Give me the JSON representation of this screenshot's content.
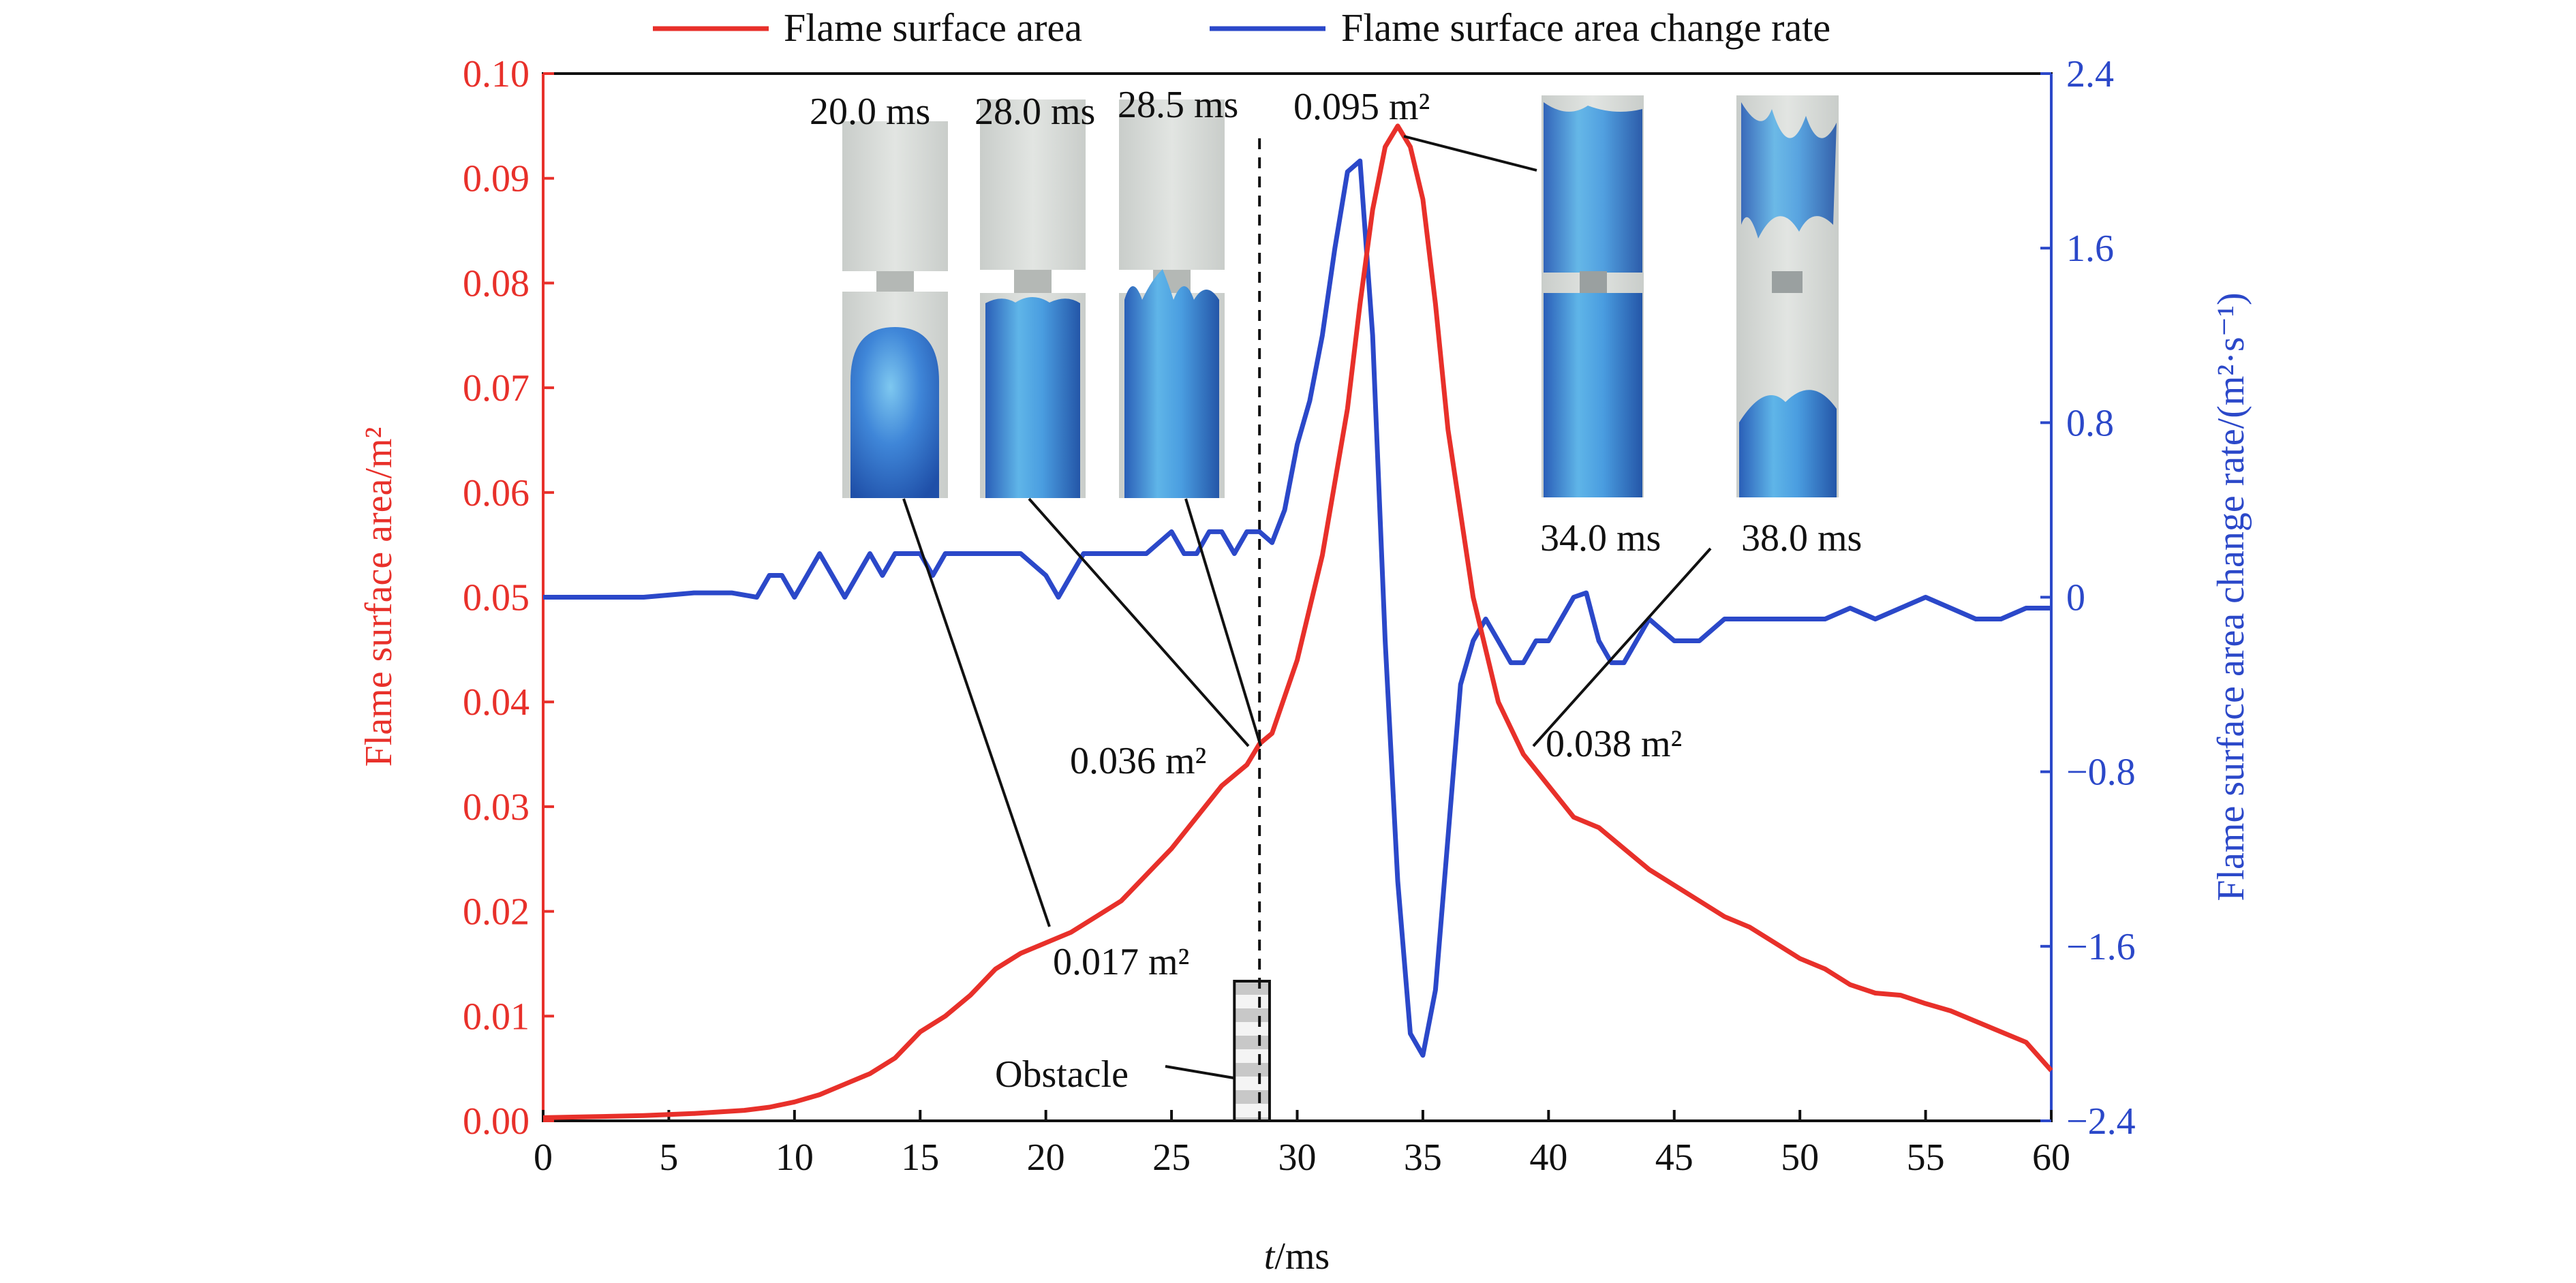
{
  "chart_data": {
    "type": "line",
    "xlabel_italic": "t",
    "xlabel_unit": "/ms",
    "ylabel_left": "Flame surface area/m²",
    "ylabel_right": "Flame surface area change rate/(m²·s⁻¹)",
    "xlim": [
      0,
      60
    ],
    "ylim_left": [
      0,
      0.1
    ],
    "ylim_right": [
      -2.4,
      2.4
    ],
    "x_ticks": [
      "0",
      "5",
      "10",
      "15",
      "20",
      "25",
      "30",
      "35",
      "40",
      "45",
      "50",
      "55",
      "60"
    ],
    "y_left_ticks": [
      "0.00",
      "0.01",
      "0.02",
      "0.03",
      "0.04",
      "0.05",
      "0.06",
      "0.07",
      "0.08",
      "0.09",
      "0.10"
    ],
    "y_right_ticks": [
      "2.4",
      "1.6",
      "0.8",
      "0",
      "−0.8",
      "−1.6",
      "−2.4"
    ],
    "colors": {
      "area": "#e8302a",
      "rate": "#2b48c9",
      "axis": "#111111"
    },
    "legend": {
      "placement": "top",
      "entries": [
        "Flame surface area",
        "Flame surface area change rate"
      ]
    },
    "series": [
      {
        "name": "Flame surface area",
        "axis": "left",
        "x": [
          0,
          2,
          4,
          6,
          8,
          9,
          10,
          11,
          12,
          13,
          14,
          15,
          16,
          17,
          18,
          19,
          20,
          21,
          22,
          23,
          24,
          25,
          26,
          27,
          28,
          28.5,
          29,
          30,
          31,
          32,
          32.5,
          33,
          33.5,
          34,
          34.5,
          35,
          35.5,
          36,
          37,
          38,
          39,
          40,
          41,
          42,
          43,
          44,
          45,
          46,
          47,
          48,
          49,
          50,
          51,
          52,
          53,
          54,
          55,
          56,
          57,
          58,
          59,
          60
        ],
        "y": [
          0.0003,
          0.0004,
          0.0005,
          0.0007,
          0.001,
          0.0013,
          0.0018,
          0.0025,
          0.0035,
          0.0045,
          0.006,
          0.0085,
          0.01,
          0.012,
          0.0145,
          0.016,
          0.017,
          0.018,
          0.0195,
          0.021,
          0.0235,
          0.026,
          0.029,
          0.032,
          0.034,
          0.036,
          0.037,
          0.044,
          0.054,
          0.068,
          0.078,
          0.087,
          0.093,
          0.095,
          0.093,
          0.088,
          0.078,
          0.066,
          0.05,
          0.04,
          0.035,
          0.032,
          0.029,
          0.028,
          0.026,
          0.024,
          0.0225,
          0.021,
          0.0195,
          0.0185,
          0.017,
          0.0155,
          0.0145,
          0.013,
          0.0122,
          0.012,
          0.0112,
          0.0105,
          0.0095,
          0.0085,
          0.0075,
          0.0048
        ]
      },
      {
        "name": "Flame surface area change rate",
        "axis": "right",
        "x": [
          0,
          2,
          4,
          6,
          7.5,
          8.5,
          9,
          9.5,
          10,
          10.5,
          11,
          11.5,
          12,
          12.5,
          13,
          13.5,
          14,
          14.5,
          15,
          15.5,
          16,
          17,
          18,
          19,
          20,
          20.5,
          21,
          21.5,
          22,
          22.5,
          23,
          24,
          25,
          25.5,
          26,
          26.5,
          27,
          27.5,
          28,
          28.5,
          29,
          29.5,
          30,
          30.5,
          31,
          31.5,
          32,
          32.5,
          33,
          33.5,
          34,
          34.5,
          35,
          35.5,
          36,
          36.5,
          37,
          37.5,
          38,
          38.5,
          39,
          39.5,
          40,
          40.5,
          41,
          41.5,
          42,
          42.5,
          43,
          43.5,
          44,
          45,
          46,
          47,
          48,
          49,
          50,
          51,
          52,
          53,
          54,
          55,
          56,
          57,
          58,
          59,
          60
        ],
        "y": [
          0.0,
          0.0,
          0.0,
          0.02,
          0.02,
          0.0,
          0.1,
          0.1,
          0.0,
          0.1,
          0.2,
          0.1,
          0.0,
          0.1,
          0.2,
          0.1,
          0.2,
          0.2,
          0.2,
          0.1,
          0.2,
          0.2,
          0.2,
          0.2,
          0.1,
          0.0,
          0.1,
          0.2,
          0.2,
          0.2,
          0.2,
          0.2,
          0.3,
          0.2,
          0.2,
          0.3,
          0.3,
          0.2,
          0.3,
          0.3,
          0.25,
          0.4,
          0.7,
          0.9,
          1.2,
          1.6,
          1.95,
          2.0,
          1.2,
          -0.2,
          -1.3,
          -2.0,
          -2.1,
          -1.8,
          -1.1,
          -0.4,
          -0.2,
          -0.1,
          -0.2,
          -0.3,
          -0.3,
          -0.2,
          -0.2,
          -0.1,
          0.0,
          0.02,
          -0.2,
          -0.3,
          -0.3,
          -0.2,
          -0.1,
          -0.2,
          -0.2,
          -0.1,
          -0.1,
          -0.1,
          -0.1,
          -0.1,
          -0.05,
          -0.1,
          -0.05,
          0.0,
          -0.05,
          -0.1,
          -0.1,
          -0.05,
          -0.05
        ]
      }
    ],
    "annotations": {
      "peak_label": "0.095 m²",
      "label_017": "0.017 m²",
      "label_036": "0.036 m²",
      "label_038": "0.038 m²",
      "obstacle_label": "Obstacle",
      "dashed_line_x": 28.5,
      "obstacle_x_range": [
        27.5,
        28.9
      ],
      "snapshots": [
        "20.0 ms",
        "28.0 ms",
        "28.5 ms",
        "34.0 ms",
        "38.0 ms"
      ]
    }
  }
}
